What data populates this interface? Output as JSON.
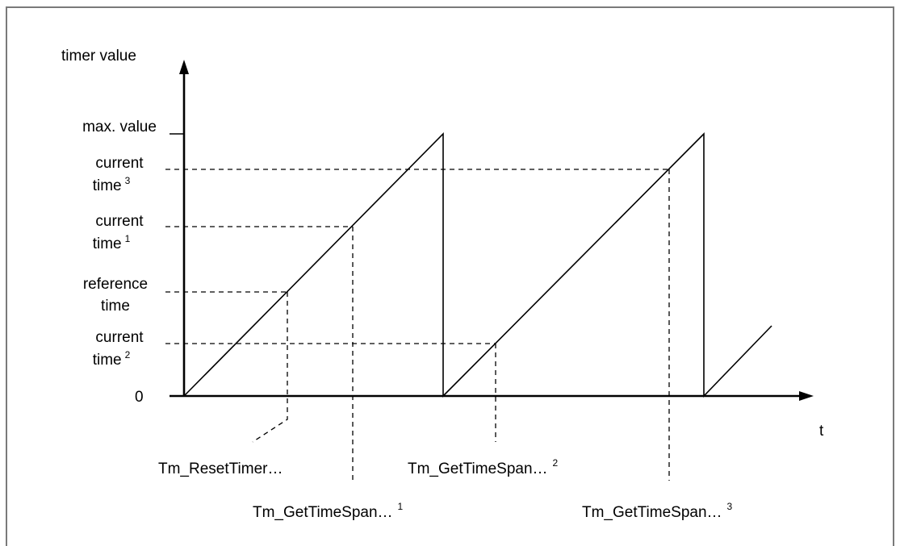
{
  "y_axis": {
    "title": "timer value",
    "zero_label": "0",
    "levels": [
      {
        "key": "max",
        "lines": [
          "max. value"
        ]
      },
      {
        "key": "cur3",
        "lines": [
          "current",
          "time"
        ],
        "sup": "3"
      },
      {
        "key": "cur1",
        "lines": [
          "current",
          "time"
        ],
        "sup": "1"
      },
      {
        "key": "ref",
        "lines": [
          "reference",
          "time"
        ]
      },
      {
        "key": "cur2",
        "lines": [
          "current",
          "time"
        ],
        "sup": "2"
      }
    ]
  },
  "x_axis": {
    "title": "t"
  },
  "calls": [
    {
      "key": "reset",
      "label": "Tm_ResetTimer…",
      "sup": ""
    },
    {
      "key": "span1",
      "label": "Tm_GetTimeSpan…",
      "sup": "1"
    },
    {
      "key": "span2",
      "label": "Tm_GetTimeSpan…",
      "sup": "2"
    },
    {
      "key": "span3",
      "label": "Tm_GetTimeSpan…",
      "sup": "3"
    }
  ]
}
